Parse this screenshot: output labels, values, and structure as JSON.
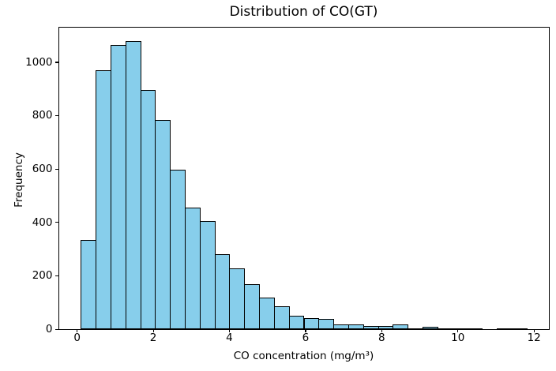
{
  "chart_data": {
    "type": "bar",
    "subtype": "histogram",
    "title": "Distribution of CO(GT)",
    "xlabel": "CO concentration (mg/m³)",
    "ylabel": "Frequency",
    "bin_start": 0.1,
    "bin_width": 0.39,
    "n_bins": 30,
    "values": [
      335,
      970,
      1065,
      1080,
      895,
      785,
      598,
      455,
      405,
      280,
      228,
      170,
      118,
      86,
      50,
      42,
      38,
      18,
      18,
      12,
      12,
      18,
      4,
      10,
      3,
      2,
      2,
      0,
      4,
      4
    ],
    "xlim": [
      -0.49,
      12.39
    ],
    "ylim": [
      0,
      1134
    ],
    "x_ticks": [
      0,
      2,
      4,
      6,
      8,
      10,
      12
    ],
    "y_ticks": [
      0,
      200,
      400,
      600,
      800,
      1000
    ],
    "grid": false,
    "legend": null,
    "bar_color": "#87CEEB",
    "bar_edge_color": "#000000",
    "background_color": "#ffffff",
    "text_color": "#000000"
  }
}
